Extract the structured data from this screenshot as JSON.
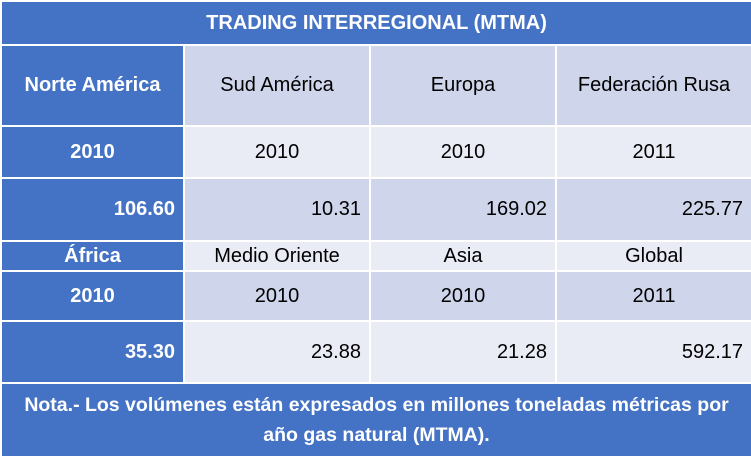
{
  "title": "TRADING INTERREGIONAL (MTMA)",
  "block1": {
    "regions": [
      "Norte América",
      "Sud América",
      "Europa",
      "Federación Rusa"
    ],
    "years": [
      "2010",
      "2010",
      "2010",
      "2011"
    ],
    "values": [
      "106.60",
      "10.31",
      "169.02",
      "225.77"
    ]
  },
  "block2": {
    "regions": [
      "África",
      "Medio Oriente",
      "Asia",
      "Global"
    ],
    "years": [
      "2010",
      "2010",
      "2010",
      "2011"
    ],
    "values": [
      "35.30",
      "23.88",
      "21.28",
      "592.17"
    ]
  },
  "note": "Nota.- Los volúmenes están expresados en millones toneladas métricas por año gas natural (MTMA).",
  "colors": {
    "header": "#4472c4",
    "band_dark": "#cfd5ea",
    "band_light": "#e9ebf5"
  }
}
